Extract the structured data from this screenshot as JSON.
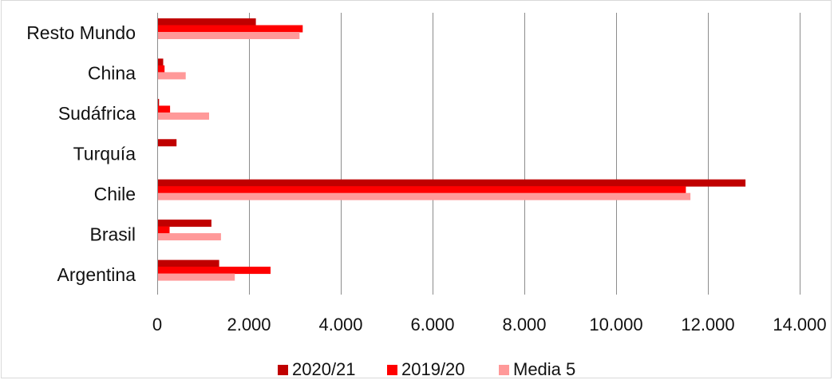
{
  "chart_data": {
    "type": "bar",
    "orientation": "horizontal",
    "categories": [
      "Resto Mundo",
      "China",
      "Sudáfrica",
      "Turquía",
      "Chile",
      "Brasil ",
      "Argentina"
    ],
    "series": [
      {
        "name": "2020/21",
        "color": "#c00000",
        "values": [
          2150,
          130,
          40,
          420,
          12820,
          1180,
          1350
        ]
      },
      {
        "name": "2019/20",
        "color": "#ff0000",
        "values": [
          3170,
          160,
          280,
          0,
          11520,
          270,
          2470
        ]
      },
      {
        "name": "Media 5",
        "color": "#ff9999",
        "values": [
          3100,
          620,
          1130,
          0,
          11620,
          1390,
          1690
        ]
      }
    ],
    "xlim": [
      0,
      14000
    ],
    "xticks": [
      0,
      2000,
      4000,
      6000,
      8000,
      10000,
      12000,
      14000
    ],
    "xtick_labels": [
      "0",
      "2.000",
      "4.000",
      "6.000",
      "8.000",
      "10.000",
      "12.000",
      "14.000"
    ],
    "grid": true,
    "legend_position": "bottom"
  }
}
